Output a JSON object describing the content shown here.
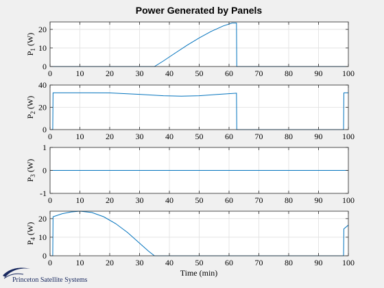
{
  "figure": {
    "title": "Power Generated by Panels",
    "xlabel": "Time (min)",
    "logo_text": "Princeton Satellite Systems"
  },
  "colors": {
    "background": "#f0f0f0",
    "axes_bg": "#ffffff",
    "line": "#0072bd",
    "grid": "#dfdfdf",
    "axis": "#262626",
    "logo": "#1a2a60"
  },
  "chart_data": [
    {
      "type": "line",
      "ylabel": "P_1 (W)",
      "ylabel_main": "P",
      "ylabel_sub": "1",
      "ylabel_unit": " (W)",
      "xlim": [
        0,
        100
      ],
      "ylim": [
        0,
        24
      ],
      "xticks": [
        0,
        10,
        20,
        30,
        40,
        50,
        60,
        70,
        80,
        90,
        100
      ],
      "yticks": [
        0,
        10,
        20
      ],
      "grid": true,
      "series": [
        {
          "x": [
            0,
            35,
            38,
            42,
            46,
            50,
            54,
            58,
            61,
            62.5,
            62.6,
            100
          ],
          "y": [
            0,
            0,
            3.0,
            7.3,
            11.5,
            15.4,
            18.9,
            21.8,
            23.4,
            23.4,
            0,
            0
          ]
        }
      ]
    },
    {
      "type": "line",
      "ylabel": "P_2 (W)",
      "ylabel_main": "P",
      "ylabel_sub": "2",
      "ylabel_unit": " (W)",
      "xlim": [
        0,
        100
      ],
      "ylim": [
        0,
        40
      ],
      "xticks": [
        0,
        10,
        20,
        30,
        40,
        50,
        60,
        70,
        80,
        90,
        100
      ],
      "yticks": [
        0,
        20,
        40
      ],
      "grid": true,
      "series": [
        {
          "x": [
            0,
            0.9,
            1.0,
            10,
            20,
            30,
            38,
            44,
            50,
            56,
            62.5,
            62.6,
            98.4,
            98.5,
            100
          ],
          "y": [
            0,
            0,
            33,
            33,
            32.9,
            31.6,
            30.4,
            30.0,
            30.4,
            31.5,
            32.7,
            0,
            0,
            33,
            33
          ]
        }
      ]
    },
    {
      "type": "line",
      "ylabel": "P_3 (W)",
      "ylabel_main": "P",
      "ylabel_sub": "3",
      "ylabel_unit": " (W)",
      "xlim": [
        0,
        100
      ],
      "ylim": [
        -1,
        1
      ],
      "xticks": [
        0,
        10,
        20,
        30,
        40,
        50,
        60,
        70,
        80,
        90,
        100
      ],
      "yticks": [
        -1,
        0,
        1
      ],
      "grid": true,
      "series": [
        {
          "x": [
            0,
            100
          ],
          "y": [
            0,
            0
          ]
        }
      ]
    },
    {
      "type": "line",
      "ylabel": "P_4 (W)",
      "ylabel_main": "P",
      "ylabel_sub": "4",
      "ylabel_unit": " (W)",
      "xlim": [
        0,
        100
      ],
      "ylim": [
        0,
        24
      ],
      "xticks": [
        0,
        10,
        20,
        30,
        40,
        50,
        60,
        70,
        80,
        90,
        100
      ],
      "yticks": [
        0,
        10,
        20
      ],
      "grid": true,
      "series": [
        {
          "x": [
            0,
            0.9,
            1.0,
            4,
            7,
            10,
            14,
            18,
            22,
            26,
            30,
            33,
            35,
            35.5,
            98.4,
            98.5,
            100
          ],
          "y": [
            0,
            0,
            21,
            22.6,
            23.6,
            24,
            23.3,
            21.0,
            17.3,
            12.5,
            6.8,
            2.5,
            0,
            0,
            0,
            14.5,
            16.5
          ]
        }
      ]
    }
  ]
}
